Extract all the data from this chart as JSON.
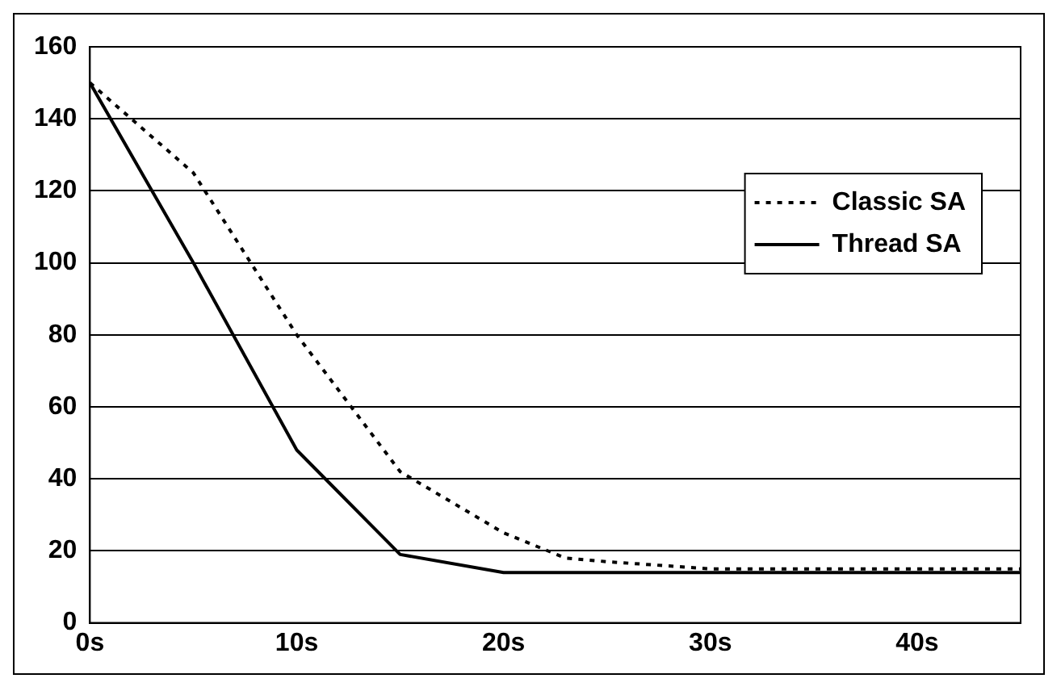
{
  "chart_data": {
    "type": "line",
    "xlim": [
      0,
      45
    ],
    "xticks": [
      {
        "value": 0,
        "label": "0s"
      },
      {
        "value": 10,
        "label": "10s"
      },
      {
        "value": 20,
        "label": "20s"
      },
      {
        "value": 30,
        "label": "30s"
      },
      {
        "value": 40,
        "label": "40s"
      }
    ],
    "ylim": [
      0,
      160
    ],
    "yticks": [
      0,
      20,
      40,
      60,
      80,
      100,
      120,
      140,
      160
    ],
    "grid": "y",
    "legend": "right",
    "marker": "none",
    "series": [
      {
        "name": "Classic SA",
        "color": "#000000",
        "line_style": "dotted",
        "x": [
          0,
          5,
          10,
          15,
          20,
          23,
          25,
          30,
          45
        ],
        "values": [
          150,
          125,
          80,
          42,
          25,
          18,
          17,
          15,
          15
        ]
      },
      {
        "name": "Thread SA",
        "color": "#000000",
        "line_style": "solid",
        "x": [
          0,
          5,
          10,
          15,
          20,
          25,
          45
        ],
        "values": [
          150,
          100,
          48,
          19,
          14,
          14,
          14
        ]
      }
    ]
  }
}
